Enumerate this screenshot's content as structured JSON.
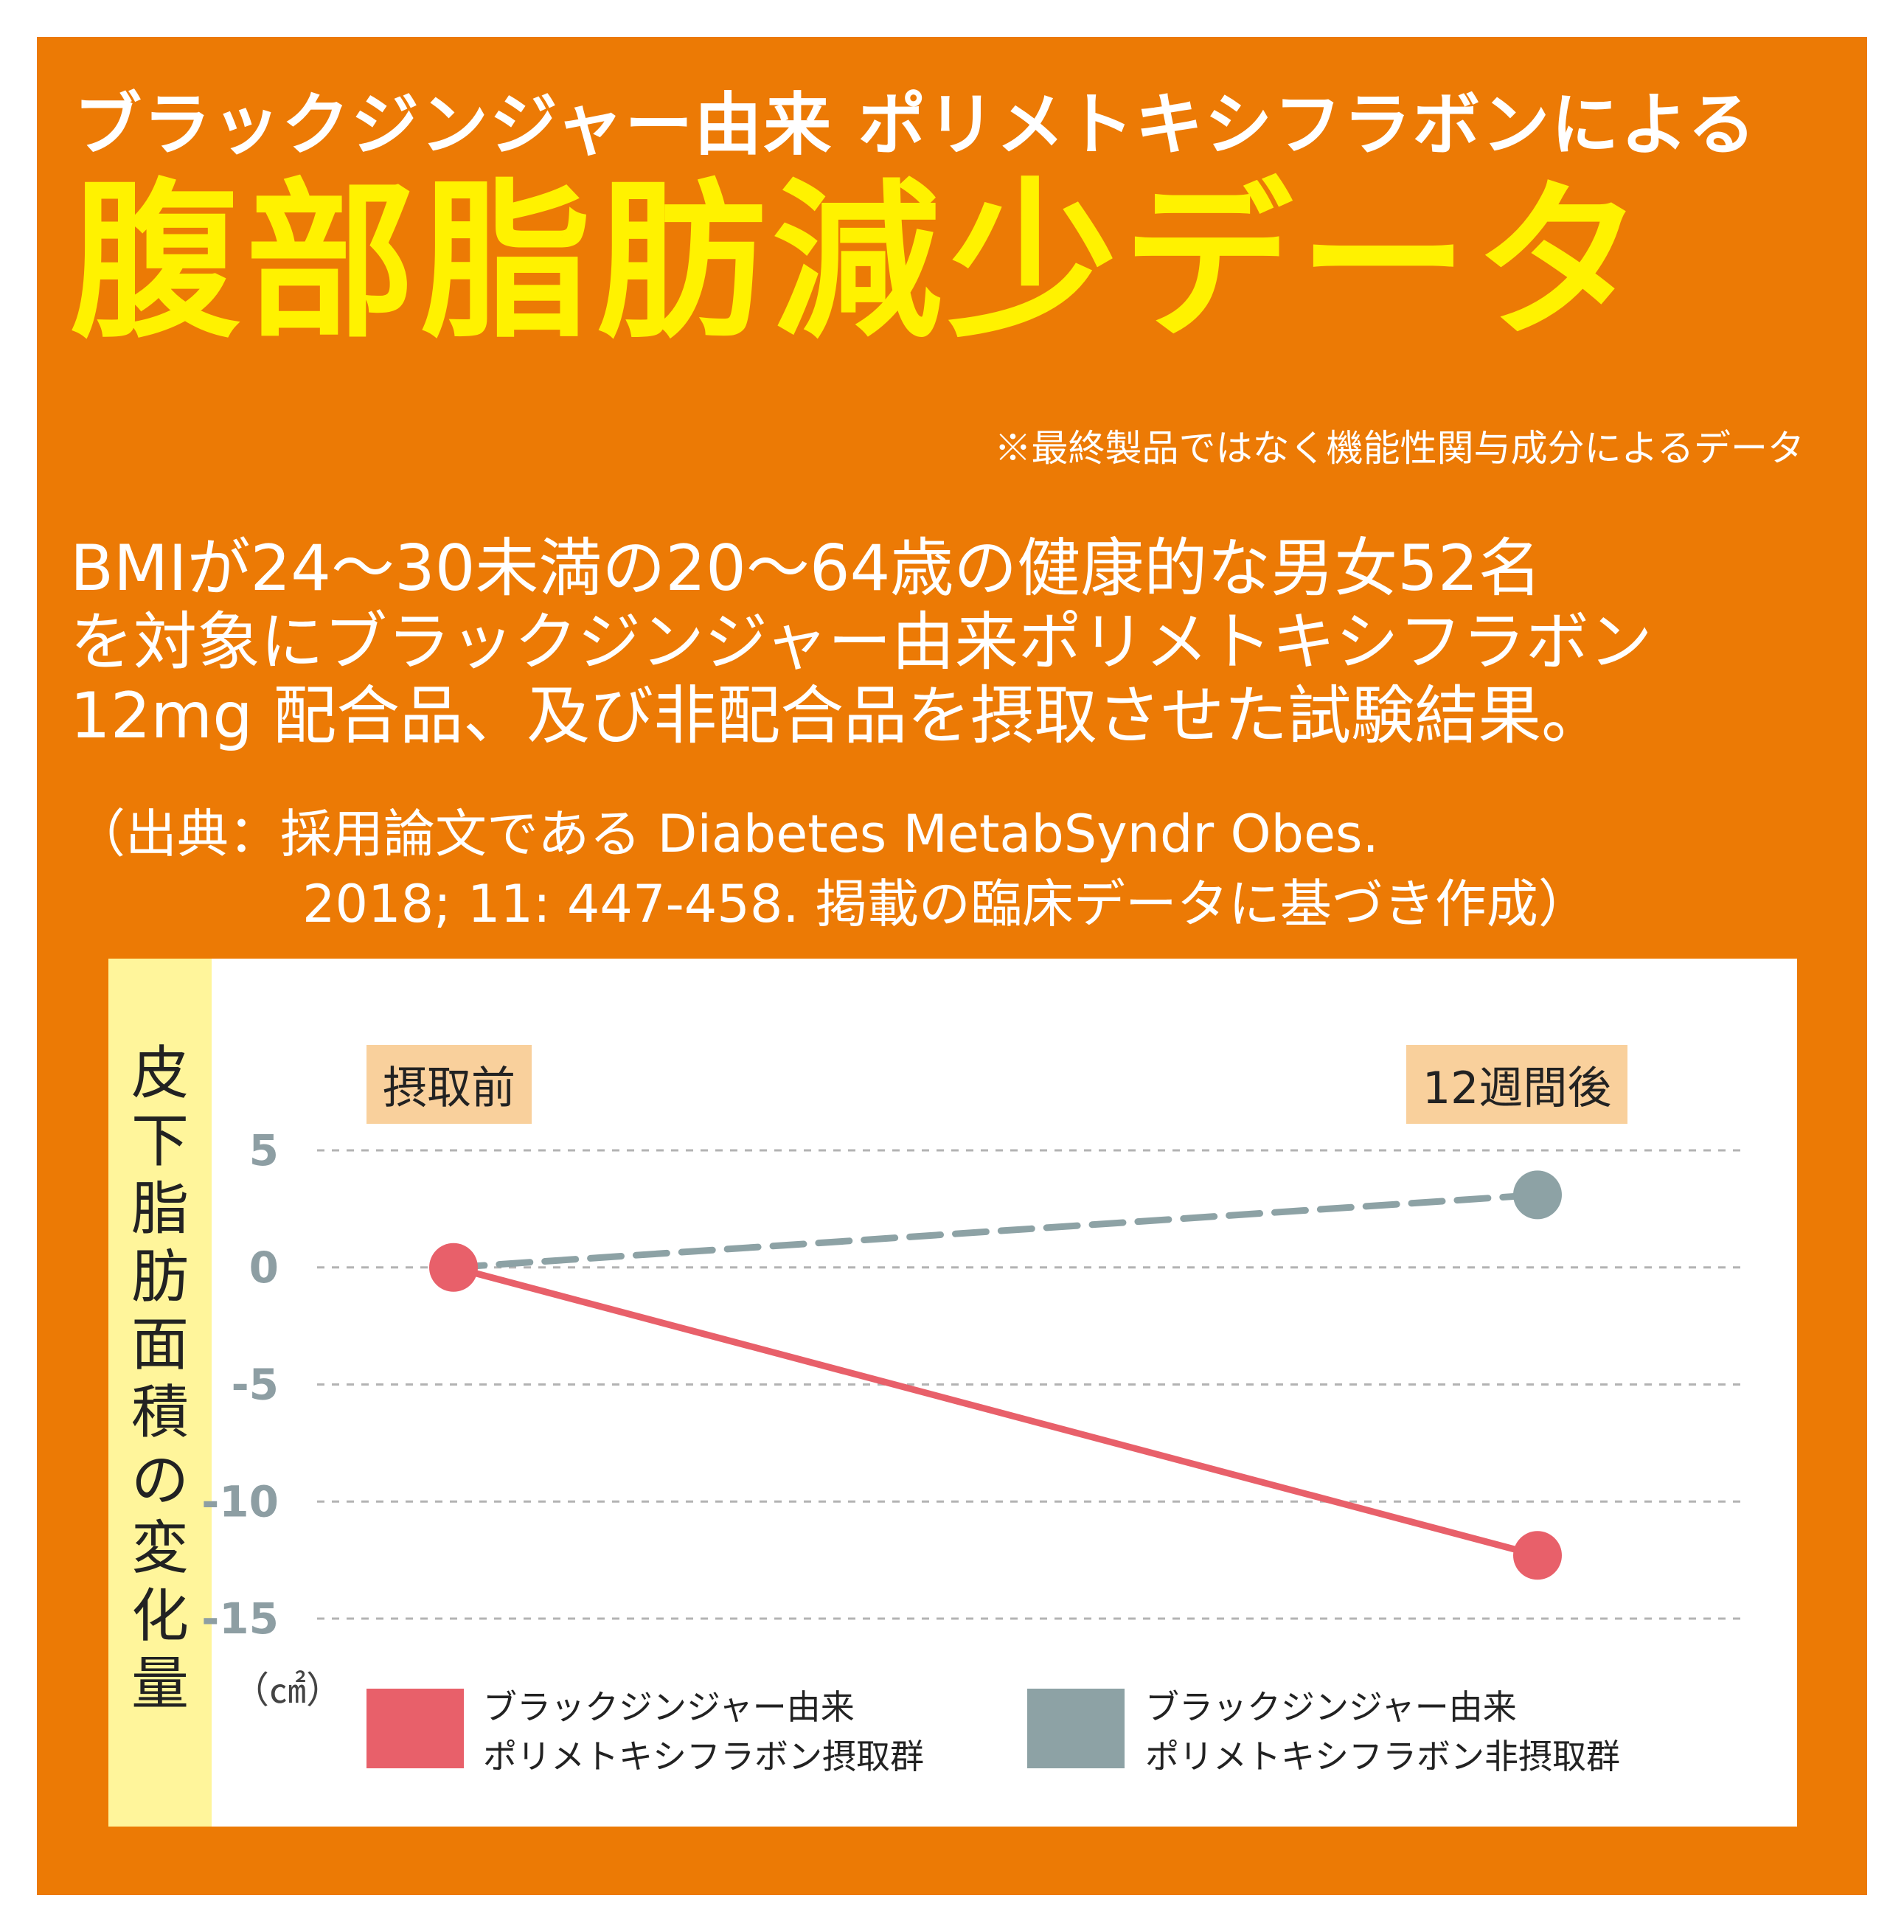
{
  "header": {
    "subtitle": "ブラックジンジャー由来 ポリメトキシフラボンによる",
    "title": "腹部脂肪減少データ",
    "note": "※最終製品ではなく機能性関与成分によるデータ"
  },
  "description": {
    "line1": "BMIが24〜30未満の20〜64歳の健康的な男女52名",
    "line2": "を対象にブラックジンジャー由来ポリメトキシフラボン",
    "line3": "12mg 配合品、及び非配合品を摂取させた試験結果。"
  },
  "source": {
    "line1": "（出典：採用論文である Diabetes MetabSyndr Obes.",
    "line2": "2018; 11: 447-458. 掲載の臨床データに基づき作成）"
  },
  "chart_data": {
    "type": "line",
    "ylabel": "皮下脂肪面積の変化量",
    "unit": "（㎠）",
    "categories": [
      "摂取前",
      "12週間後"
    ],
    "ylim": [
      -15,
      5
    ],
    "yticks": [
      5,
      0,
      -5,
      -10,
      -15
    ],
    "grid": true,
    "series": [
      {
        "name": "ブラックジンジャー由来ポリメトキシフラボン摂取群",
        "name_lines": [
          "ブラックジンジャー由来",
          "ポリメトキシフラボン摂取群"
        ],
        "values": [
          0,
          -12.3
        ],
        "color": "#e8606a",
        "style": "solid"
      },
      {
        "name": "ブラックジンジャー由来ポリメトキシフラボン非摂取群",
        "name_lines": [
          "ブラックジンジャー由来",
          "ポリメトキシフラボン非摂取群"
        ],
        "values": [
          0,
          3.1
        ],
        "color": "#8da2a5",
        "style": "dashed"
      }
    ]
  }
}
